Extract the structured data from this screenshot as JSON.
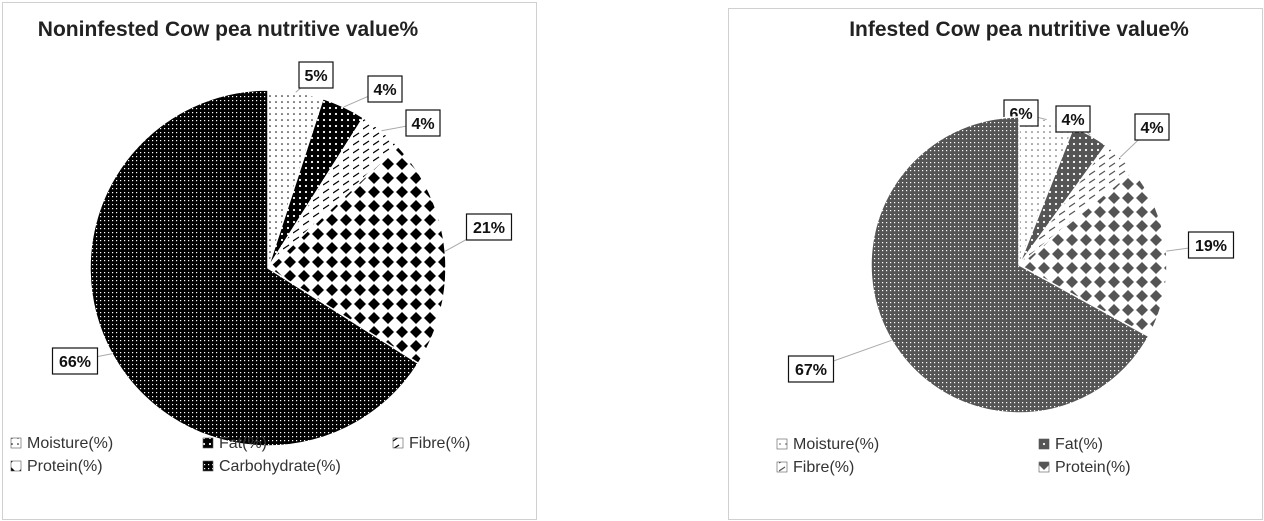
{
  "chart_data": [
    {
      "type": "pie",
      "title": "Noninfested Cow pea nutritive value%",
      "slices": [
        {
          "label": "Moisture(%)",
          "value": 5,
          "data_label": "5%"
        },
        {
          "label": "Fat(%)",
          "value": 4,
          "data_label": "4%"
        },
        {
          "label": "Fibre(%)",
          "value": 4,
          "data_label": "4%"
        },
        {
          "label": "Protein(%)",
          "value": 21,
          "data_label": "21%"
        },
        {
          "label": "Carbohydrate(%)",
          "value": 66,
          "data_label": "66%"
        }
      ],
      "legend": [
        "Moisture(%)",
        "Fat(%)",
        "Fibre(%)",
        "Protein(%)",
        "Carbohydrate(%)"
      ],
      "legend_placement": "bottom",
      "color": "#000000"
    },
    {
      "type": "pie",
      "title": "Infested Cow pea nutritive value%",
      "slices": [
        {
          "label": "Moisture(%)",
          "value": 6,
          "data_label": "6%"
        },
        {
          "label": "Fat(%)",
          "value": 4,
          "data_label": "4%"
        },
        {
          "label": "Fibre(%)",
          "value": 4,
          "data_label": "4%"
        },
        {
          "label": "Protein(%)",
          "value": 19,
          "data_label": "19%"
        },
        {
          "label": "",
          "value": 67,
          "data_label": "67%"
        }
      ],
      "legend": [
        "Moisture(%)",
        "Fat(%)",
        "Fibre(%)",
        "Protein(%)"
      ],
      "legend_placement": "bottom",
      "color": "#555555"
    }
  ]
}
